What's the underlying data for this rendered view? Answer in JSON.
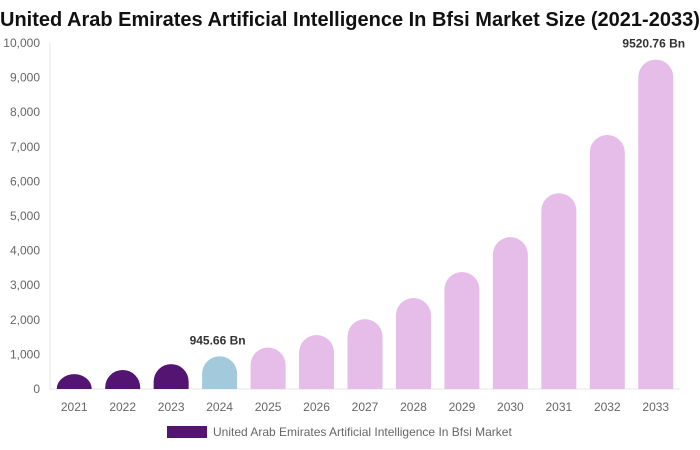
{
  "chart_data": {
    "type": "bar",
    "title": "United Arab Emirates Artificial Intelligence In Bfsi Market Size (2021-2033)",
    "categories": [
      "2021",
      "2022",
      "2023",
      "2024",
      "2025",
      "2026",
      "2027",
      "2028",
      "2029",
      "2030",
      "2031",
      "2032",
      "2033"
    ],
    "series": [
      {
        "name": "United Arab Emirates Artificial Intelligence In Bfsi Market",
        "values": [
          430,
          550,
          720,
          945.66,
          1200,
          1560,
          2020,
          2630,
          3380,
          4390,
          5660,
          7340,
          9520.76
        ]
      }
    ],
    "data_labels": {
      "2024": "945.66 Bn",
      "2033": "9520.76 Bn"
    },
    "ylim": [
      0,
      10000
    ],
    "yticks": [
      0,
      1000,
      2000,
      3000,
      4000,
      5000,
      6000,
      7000,
      8000,
      9000,
      10000
    ],
    "ytick_labels": [
      "0",
      "1,000",
      "2,000",
      "3,000",
      "4,000",
      "5,000",
      "6,000",
      "7,000",
      "8,000",
      "9,000",
      "10,000"
    ],
    "xlabel": "",
    "ylabel": "",
    "grid": false,
    "legend": "bottom",
    "colors": {
      "historical": "#541472",
      "current": "#a3c9dd",
      "forecast": "#e6bce8"
    }
  }
}
